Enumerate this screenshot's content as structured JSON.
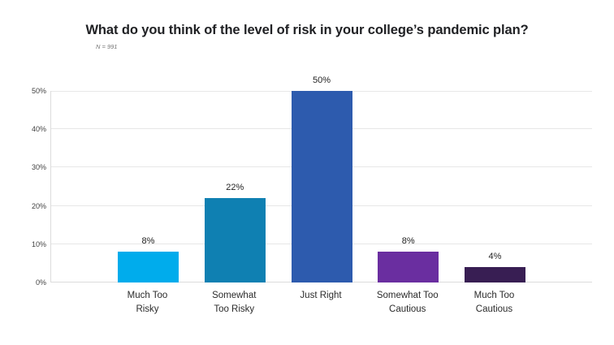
{
  "chart_data": {
    "type": "bar",
    "title": "What do you think of the level of risk in your college’s pandemic plan?",
    "subtitle": "N = 991",
    "categories": [
      "Much Too Risky",
      "Somewhat Too Risky",
      "Just Right",
      "Somewhat Too Cautious",
      "Much Too Cautious"
    ],
    "category_label_lines": [
      [
        "Much Too",
        "Risky"
      ],
      [
        "Somewhat",
        "Too Risky"
      ],
      [
        "Just Right"
      ],
      [
        "Somewhat Too",
        "Cautious"
      ],
      [
        "Much Too",
        "Cautious"
      ]
    ],
    "values": [
      8,
      22,
      50,
      8,
      4
    ],
    "value_labels": [
      "8%",
      "22%",
      "50%",
      "8%",
      "4%"
    ],
    "bar_colors": [
      "#00ACEC",
      "#0F80B2",
      "#2D5BAE",
      "#6A2EA0",
      "#381E53"
    ],
    "y_ticks": [
      0,
      10,
      20,
      30,
      40,
      50
    ],
    "y_tick_labels": [
      "0%",
      "10%",
      "20%",
      "30%",
      "40%",
      "50%"
    ],
    "ylim": [
      0,
      50
    ],
    "xlabel": "",
    "ylabel": "",
    "grid": true,
    "legend": "none"
  }
}
